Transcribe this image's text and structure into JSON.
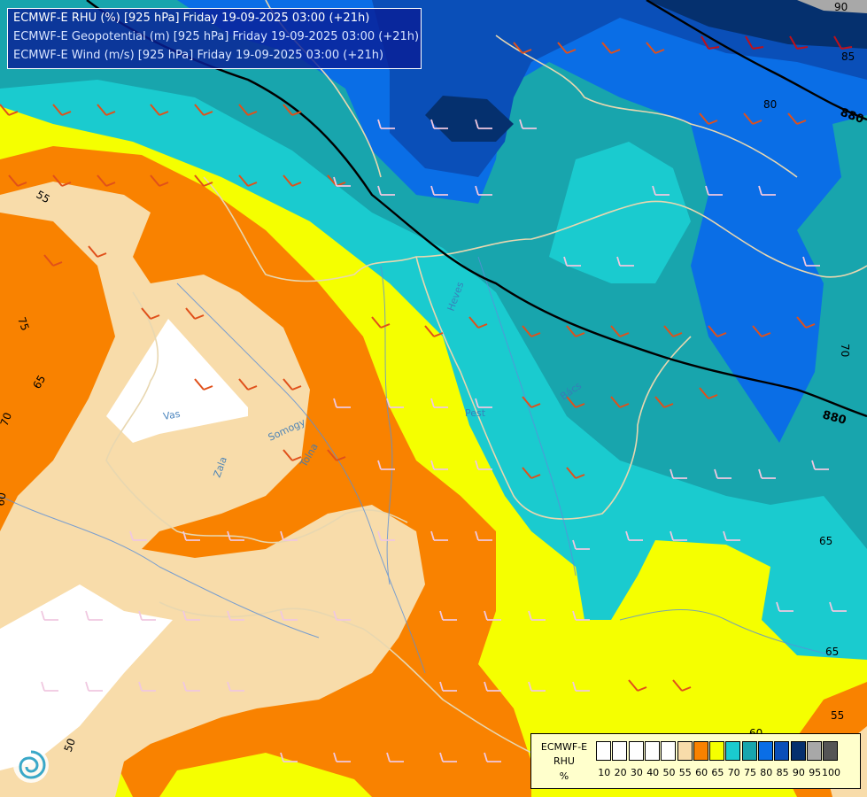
{
  "header": {
    "lines": [
      "ECMWF-E RHU (%) [925 hPa] Friday 19-09-2025 03:00 (+21h)",
      "ECMWF-E Geopotential (m) [925 hPa] Friday 19-09-2025 03:00 (+21h)",
      "ECMWF-E Wind (m/s) [925 hPa] Friday 19-09-2025 03:00 (+21h)"
    ]
  },
  "legend": {
    "model": "ECMWF-E",
    "variable": "RHU",
    "unit": "%",
    "ticks": [
      "10",
      "20",
      "30",
      "40",
      "50",
      "55",
      "60",
      "65",
      "70",
      "75",
      "80",
      "85",
      "90",
      "95",
      "100"
    ],
    "colors": [
      "#ffffff",
      "#ffffff",
      "#ffffff",
      "#ffffff",
      "#ffffff",
      "#f8dcaa",
      "#f98200",
      "#f5ff00",
      "#1acbcf",
      "#18a5ad",
      "#0a6ee6",
      "#0a4fb8",
      "#05306e",
      "#a8a8a8",
      "#555555"
    ]
  },
  "contour_labels": [
    {
      "text": "90",
      "v": 90
    },
    {
      "text": "85",
      "v": 85
    },
    {
      "text": "80",
      "v": 80
    },
    {
      "text": "70",
      "v": 70
    },
    {
      "text": "75",
      "v": 75
    },
    {
      "text": "65",
      "v": 65
    },
    {
      "text": "70",
      "v": 70
    },
    {
      "text": "60",
      "v": 60
    },
    {
      "text": "55",
      "v": 55
    },
    {
      "text": "65",
      "v": 65
    },
    {
      "text": "65",
      "v": 65
    },
    {
      "text": "55",
      "v": 55
    },
    {
      "text": "50",
      "v": 50
    },
    {
      "text": "60",
      "v": 60
    }
  ],
  "geopotential_labels": [
    "880",
    "880"
  ],
  "place_labels": [
    "Vas",
    "Zala",
    "Somogy",
    "Tolna",
    "Pest",
    "Heves",
    "Bács"
  ],
  "colors": {
    "title_bg": "#0a1e96",
    "legend_bg": "#ffffcc",
    "border_line": "#e8d7b0",
    "river_line": "#5a8fd8",
    "wind_orange": "#e0501a",
    "wind_light": "#f0c8e0"
  },
  "icons": {
    "logo": "omsz-swirl-logo-icon"
  }
}
